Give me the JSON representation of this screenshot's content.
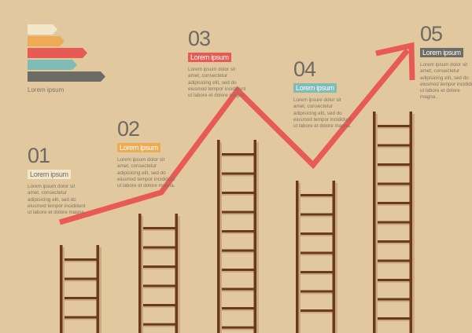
{
  "legend": {
    "label": "Lorem ipsum",
    "bars": [
      {
        "color": "#f2e8c9"
      },
      {
        "color": "#eeab55"
      },
      {
        "color": "#e85b55"
      },
      {
        "color": "#7fbcb5"
      },
      {
        "color": "#6d6b66"
      }
    ]
  },
  "steps": [
    {
      "number": "01",
      "tag": "Lorem ipsum",
      "tag_color": "#f2e8c9",
      "tag_text_color": "#6d6a64",
      "body": "Lorem ipsum dolor sit amet, consectetur adipisicing elit, sed do eiusmod tempor incididunt ut labore et dolore magna."
    },
    {
      "number": "02",
      "tag": "Lorem ipsum",
      "tag_color": "#eeab55",
      "tag_text_color": "#ffffff",
      "body": "Lorem ipsum dolor sit amet, consectetur adipisicing elit, sed do eiusmod tempor incididunt ut labore et dolore magna."
    },
    {
      "number": "03",
      "tag": "Lorem ipsum",
      "tag_color": "#e85b55",
      "tag_text_color": "#ffffff",
      "body": "Lorem ipsum dolor sit amet, consectetur adipisicing elit, sed do eiusmod tempor incididunt ut labore et dolore magna."
    },
    {
      "number": "04",
      "tag": "Lorem ipsum",
      "tag_color": "#7fbcb5",
      "tag_text_color": "#ffffff",
      "body": "Lorem ipsure dolor sit amet, consectetur adipisicing elit, sed do eiusmod tempor incididunt ut labore et dolore magna."
    },
    {
      "number": "05",
      "tag": "Lorem ipsum",
      "tag_color": "#6d6b66",
      "tag_text_color": "#ffffff",
      "body": "Lorem ipsum dolor sit amet, consectetur adipisicing elit, sed do eiusmod tempor incididunt ut labore et dolore magna.."
    }
  ],
  "colors": {
    "background": "#e2c89f",
    "ladder": "#6b3a1c",
    "trend_arrow": "#e85b55"
  }
}
